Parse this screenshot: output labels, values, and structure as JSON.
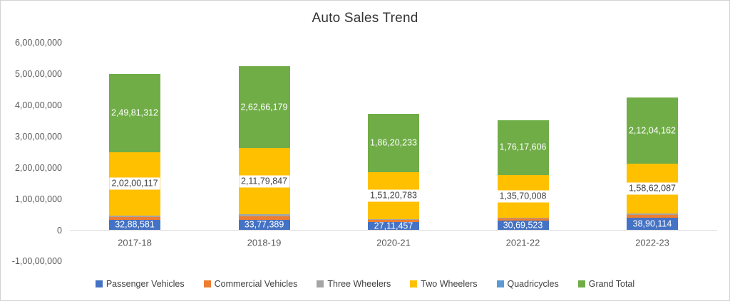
{
  "chart": {
    "title": "Auto Sales Trend"
  },
  "chart_data": {
    "type": "bar",
    "stacked": true,
    "title": "Auto Sales Trend",
    "xlabel": "",
    "ylabel": "",
    "categories": [
      "2017-18",
      "2018-19",
      "2020-21",
      "2021-22",
      "2022-23"
    ],
    "series": [
      {
        "name": "Passenger Vehicles",
        "color": "#4472C4",
        "values": [
          3288581,
          3377389,
          2711457,
          3069523,
          3890114
        ],
        "labels": [
          "32,88,581",
          "33,77,389",
          "27,11,457",
          "30,69,523",
          "38,90,114"
        ],
        "label_style": "white-on-bar",
        "estimated": false
      },
      {
        "name": "Commercial Vehicles",
        "color": "#ED7D31",
        "values": [
          860000,
          1007000,
          569000,
          717000,
          962000
        ],
        "labels": null,
        "label_style": "none",
        "estimated": true
      },
      {
        "name": "Three Wheelers",
        "color": "#A5A5A5",
        "values": [
          633000,
          701000,
          219000,
          261000,
          490000
        ],
        "labels": null,
        "label_style": "none",
        "estimated": true
      },
      {
        "name": "Two Wheelers",
        "color": "#FFC000",
        "values": [
          20200117,
          21179847,
          15120783,
          13570008,
          15862087
        ],
        "labels": [
          "2,02,00,117",
          "2,11,79,847",
          "1,51,20,783",
          "1,35,70,008",
          "1,58,62,087"
        ],
        "label_style": "black-on-white-box",
        "estimated": false
      },
      {
        "name": "Quadricycles",
        "color": "#5B9BD5",
        "values": [
          0,
          0,
          0,
          0,
          0
        ],
        "labels": null,
        "label_style": "none",
        "estimated": true
      },
      {
        "name": "Grand Total",
        "color": "#70AD47",
        "values": [
          24981312,
          26266179,
          18620233,
          17617606,
          21204162
        ],
        "labels": [
          "2,49,81,312",
          "2,62,66,179",
          "1,86,20,233",
          "1,76,17,606",
          "2,12,04,162"
        ],
        "label_style": "white-on-bar",
        "estimated": false
      }
    ],
    "y_axis": {
      "ticks": [
        {
          "value": 60000000,
          "label": "6,00,00,000"
        },
        {
          "value": 50000000,
          "label": "5,00,00,000"
        },
        {
          "value": 40000000,
          "label": "4,00,00,000"
        },
        {
          "value": 30000000,
          "label": "3,00,00,000"
        },
        {
          "value": 20000000,
          "label": "2,00,00,000"
        },
        {
          "value": 10000000,
          "label": "1,00,00,000"
        },
        {
          "value": 0,
          "label": "0"
        },
        {
          "value": -10000000,
          "label": "-1,00,00,000"
        }
      ],
      "range": [
        -10000000,
        60000000
      ],
      "number_format": "indian-lakh-crore"
    },
    "grid": false,
    "legend_position": "bottom",
    "note": "Grand Total is plotted as an additional stacked segment on top of the component series."
  }
}
